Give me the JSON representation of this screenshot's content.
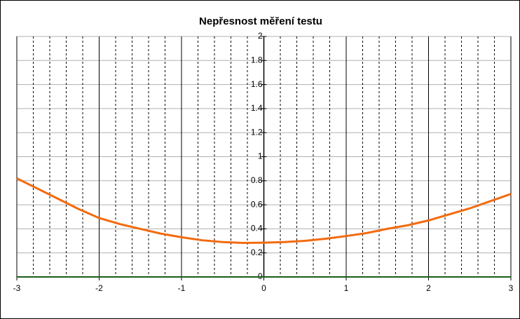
{
  "chart_data": {
    "type": "line",
    "title": "Nepřesnost měření testu",
    "x": [
      -3,
      -2.75,
      -2.5,
      -2.25,
      -2,
      -1.75,
      -1.5,
      -1.25,
      -1,
      -0.75,
      -0.5,
      -0.25,
      0,
      0.25,
      0.5,
      0.75,
      1,
      1.25,
      1.5,
      1.75,
      2,
      2.25,
      2.5,
      2.75,
      3
    ],
    "series": [
      {
        "color": "#f26b0f",
        "values": [
          0.82,
          0.735,
          0.65,
          0.565,
          0.49,
          0.44,
          0.4,
          0.36,
          0.33,
          0.305,
          0.29,
          0.283,
          0.285,
          0.29,
          0.3,
          0.318,
          0.34,
          0.365,
          0.4,
          0.43,
          0.47,
          0.52,
          0.57,
          0.63,
          0.69
        ]
      }
    ],
    "xlim": [
      -3,
      3
    ],
    "xticks": [
      -3,
      -2,
      -1,
      0,
      1,
      2,
      3
    ],
    "xminorticks": [
      -2.8,
      -2.6,
      -2.4,
      -2.2,
      -1.8,
      -1.6,
      -1.4,
      -1.2,
      -0.8,
      -0.6,
      -0.4,
      -0.2,
      0.2,
      0.4,
      0.6,
      0.8,
      1.2,
      1.4,
      1.6,
      1.8,
      2.2,
      2.4,
      2.6,
      2.8
    ],
    "ylim": [
      0,
      2
    ],
    "yticks": [
      0,
      0.2,
      0.4,
      0.6,
      0.8,
      1,
      1.2,
      1.4,
      1.6,
      1.8,
      2
    ],
    "grid": true
  }
}
